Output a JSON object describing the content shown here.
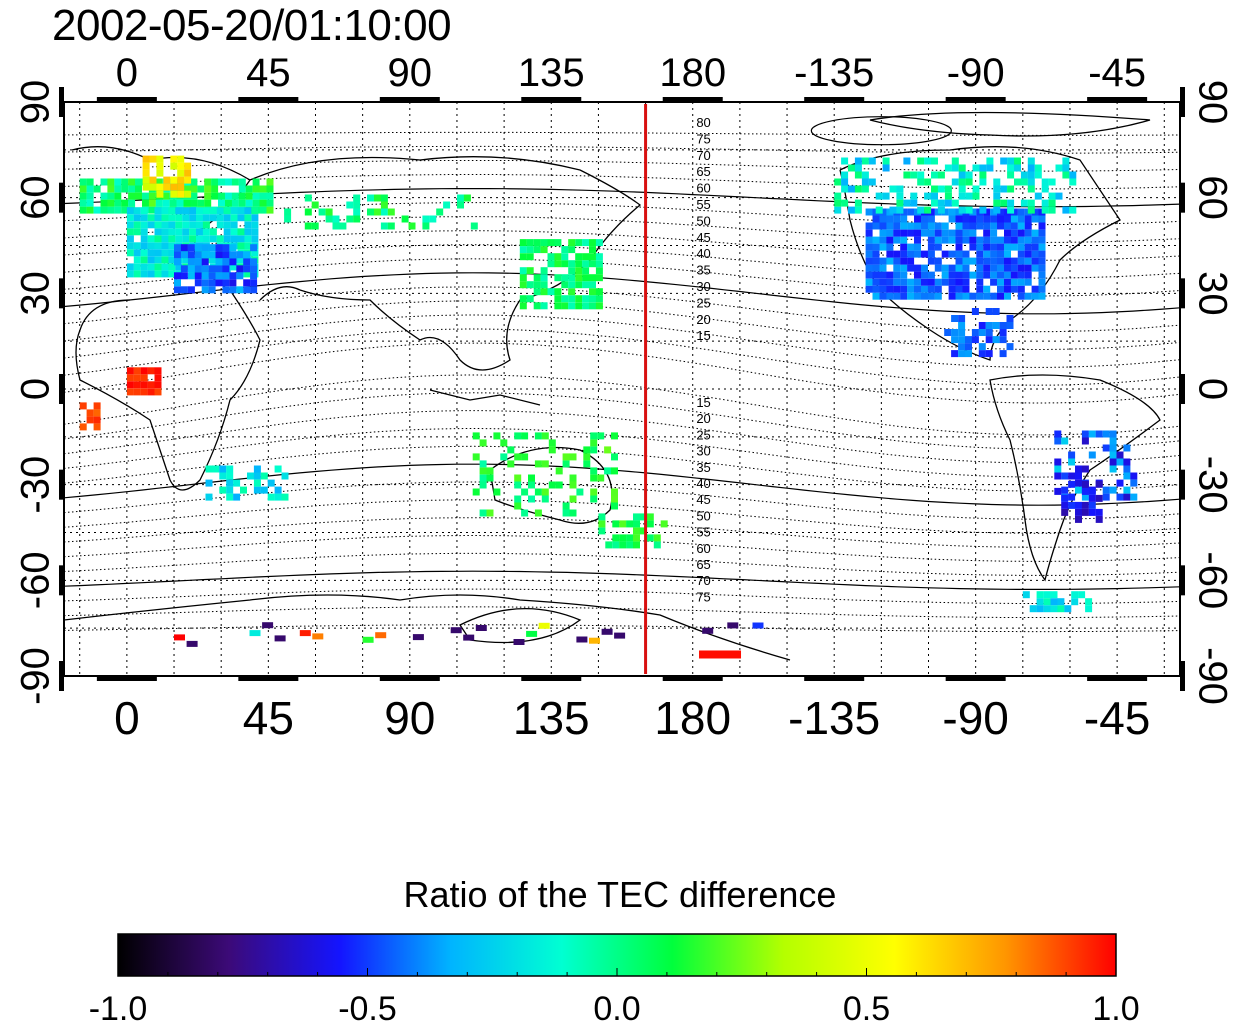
{
  "timestamp": "2002-05-20/01:10:00",
  "map": {
    "lon_labels": [
      "0",
      "45",
      "90",
      "135",
      "180",
      "-135",
      "-90",
      "-45"
    ],
    "lon_values": [
      0,
      45,
      90,
      135,
      180,
      225,
      270,
      315
    ],
    "lat_labels": [
      "90",
      "60",
      "30",
      "0",
      "-30",
      "-60",
      "-90"
    ],
    "lat_values": [
      90,
      60,
      30,
      0,
      -30,
      -60,
      -90
    ],
    "lon_range": [
      -20,
      335
    ],
    "lat_range": [
      -90,
      90
    ],
    "marker_line": {
      "lon": 165,
      "color": "#d81010"
    },
    "contour_labels_north": [
      "80",
      "75",
      "70",
      "65",
      "60",
      "55",
      "50",
      "45",
      "40",
      "35",
      "30",
      "25",
      "20",
      "15"
    ],
    "contour_labels_south": [
      "15",
      "20",
      "25",
      "30",
      "35",
      "40",
      "45",
      "50",
      "55",
      "60",
      "65",
      "70",
      "75"
    ]
  },
  "colorbar": {
    "title": "Ratio of the TEC difference",
    "min": -1.0,
    "max": 1.0,
    "tick_labels": [
      "-1.0",
      "-0.5",
      "0.0",
      "0.5",
      "1.0"
    ],
    "tick_values": [
      -1.0,
      -0.5,
      0.0,
      0.5,
      1.0
    ],
    "colors": [
      "#000000",
      "#3c0a78",
      "#1414ff",
      "#00b4ff",
      "#00ffd2",
      "#00ff3c",
      "#b4ff00",
      "#ffff00",
      "#ff9600",
      "#ff0000"
    ]
  }
}
